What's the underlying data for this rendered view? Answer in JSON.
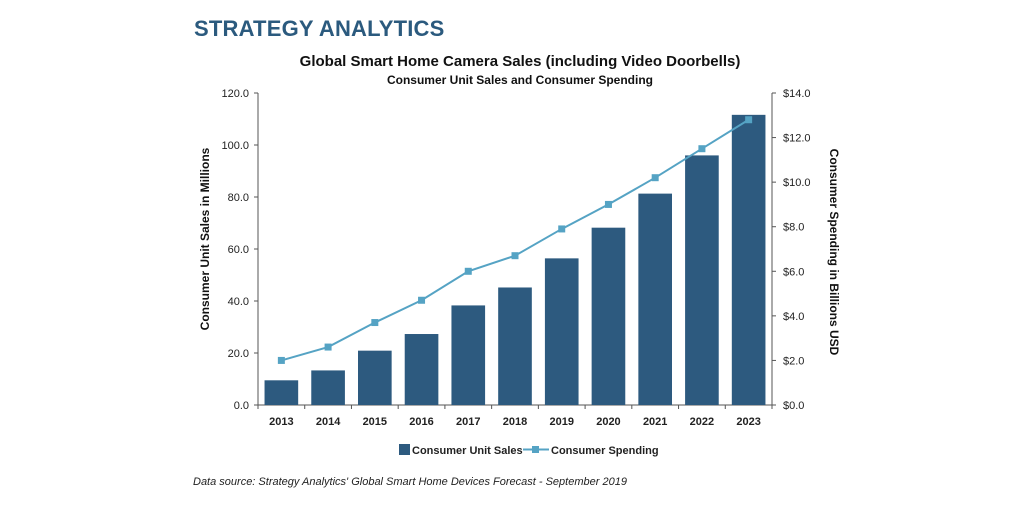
{
  "brand": "STRATEGY ANALYTICS",
  "source_note": "Data source: Strategy Analytics' Global Smart Home Devices Forecast - September 2019",
  "colors": {
    "bar": "#2d5a7f",
    "line": "#55a3c4",
    "brand": "#2b5a7e"
  },
  "chart_data": {
    "type": "bar",
    "title": "Global Smart Home Camera Sales (including Video Doorbells)",
    "subtitle": "Consumer Unit Sales and Consumer Spending",
    "categories": [
      "2013",
      "2014",
      "2015",
      "2016",
      "2017",
      "2018",
      "2019",
      "2020",
      "2021",
      "2022",
      "2023"
    ],
    "series": [
      {
        "name": "Consumer Unit Sales",
        "type": "bar",
        "axis": "left",
        "values": [
          9.5,
          13.3,
          20.9,
          27.3,
          38.3,
          45.2,
          56.4,
          68.2,
          81.3,
          96.0,
          111.6
        ]
      },
      {
        "name": "Consumer Spending",
        "type": "line",
        "axis": "right",
        "values": [
          2.0,
          2.6,
          3.7,
          4.7,
          6.0,
          6.7,
          7.9,
          9.0,
          10.2,
          11.5,
          12.8
        ]
      }
    ],
    "ylabel": "Consumer Unit Sales in Millions",
    "ylim": [
      0,
      120
    ],
    "yticks": [
      "0.0",
      "20.0",
      "40.0",
      "60.0",
      "80.0",
      "100.0",
      "120.0"
    ],
    "y2label": "Consumer Spending in Billions USD",
    "y2lim": [
      0,
      14
    ],
    "y2ticks": [
      "$0.0",
      "$2.0",
      "$4.0",
      "$6.0",
      "$8.0",
      "$10.0",
      "$12.0",
      "$14.0"
    ],
    "legend_position": "bottom",
    "grid": false
  }
}
